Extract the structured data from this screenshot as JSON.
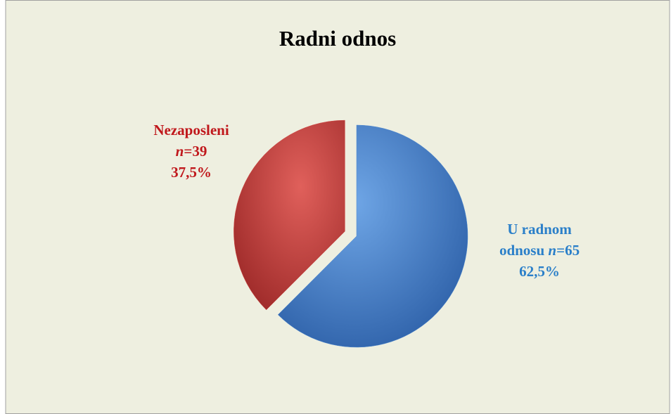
{
  "chart_data": {
    "type": "pie",
    "title": "Radni odnos",
    "categories": [
      "U radnom odnosu",
      "Nezaposleni"
    ],
    "values": [
      62.5,
      37.5
    ],
    "value_labels": [
      "62,5%",
      "37,5%"
    ],
    "count_symbol": "n",
    "count_sep": "=",
    "counts": [
      65,
      39
    ],
    "colors": [
      "#4a86d0",
      "#d04844"
    ],
    "label_colors": [
      "#2a7fc9",
      "#c0181c"
    ],
    "exploded": [
      false,
      true
    ]
  }
}
